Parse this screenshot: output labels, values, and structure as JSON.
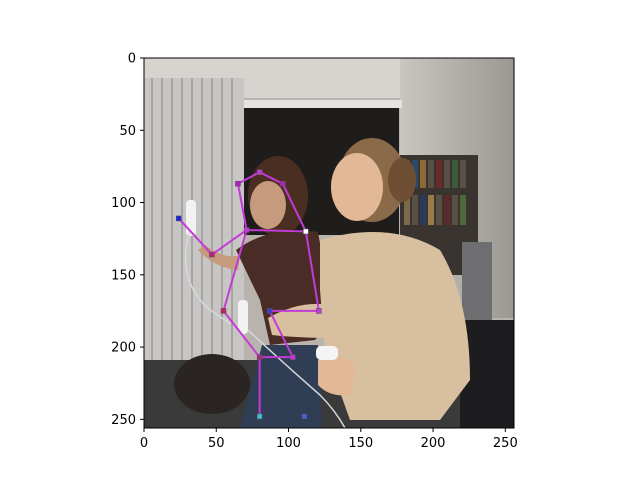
{
  "figure": {
    "image_description_icon": "photo-two-women-playing-wii",
    "axes": {
      "x_ticks": [
        {
          "value": 0,
          "label": "0"
        },
        {
          "value": 50,
          "label": "50"
        },
        {
          "value": 100,
          "label": "100"
        },
        {
          "value": 150,
          "label": "150"
        },
        {
          "value": 200,
          "label": "200"
        },
        {
          "value": 250,
          "label": "250"
        }
      ],
      "y_ticks": [
        {
          "value": 0,
          "label": "0"
        },
        {
          "value": 50,
          "label": "50"
        },
        {
          "value": 100,
          "label": "100"
        },
        {
          "value": 150,
          "label": "150"
        },
        {
          "value": 200,
          "label": "200"
        },
        {
          "value": 250,
          "label": "250"
        }
      ],
      "xlim": [
        0,
        256
      ],
      "ylim": [
        256,
        0
      ]
    },
    "skeleton": {
      "line_color": "#c43ad6",
      "joints": [
        {
          "name": "head-top",
          "x": 80,
          "y": 79,
          "color": "#c43ad6"
        },
        {
          "name": "neck-left",
          "x": 65,
          "y": 87,
          "color": "#b020c0"
        },
        {
          "name": "neck-right",
          "x": 96,
          "y": 87,
          "color": "#b020c0"
        },
        {
          "name": "left-shoulder",
          "x": 71,
          "y": 119,
          "color": "#c43ad6"
        },
        {
          "name": "right-shoulder",
          "x": 112,
          "y": 120,
          "color": "#ffffff"
        },
        {
          "name": "left-elbow",
          "x": 47,
          "y": 136,
          "color": "#c02080"
        },
        {
          "name": "left-wrist",
          "x": 24,
          "y": 111,
          "color": "#2020e0"
        },
        {
          "name": "right-hip-outer",
          "x": 121,
          "y": 175,
          "color": "#c43ad6"
        },
        {
          "name": "center-hip",
          "x": 87,
          "y": 175,
          "color": "#4040c0"
        },
        {
          "name": "left-hip",
          "x": 55,
          "y": 175,
          "color": "#c02060"
        },
        {
          "name": "left-knee",
          "x": 80,
          "y": 207,
          "color": "#a03080"
        },
        {
          "name": "right-knee",
          "x": 103,
          "y": 207,
          "color": "#c43ad6"
        },
        {
          "name": "left-ankle",
          "x": 80,
          "y": 248,
          "color": "#40c0d0"
        },
        {
          "name": "right-ankle",
          "x": 111,
          "y": 248,
          "color": "#4060e0"
        }
      ],
      "bones": [
        [
          "neck-left",
          "head-top"
        ],
        [
          "head-top",
          "neck-right"
        ],
        [
          "neck-left",
          "left-shoulder"
        ],
        [
          "neck-right",
          "right-shoulder"
        ],
        [
          "left-shoulder",
          "right-shoulder"
        ],
        [
          "left-shoulder",
          "left-elbow"
        ],
        [
          "left-elbow",
          "left-wrist"
        ],
        [
          "right-shoulder",
          "right-hip-outer"
        ],
        [
          "right-hip-outer",
          "center-hip"
        ],
        [
          "left-shoulder",
          "left-hip"
        ],
        [
          "left-hip",
          "left-knee"
        ],
        [
          "left-knee",
          "left-ankle"
        ],
        [
          "left-knee",
          "right-knee"
        ],
        [
          "right-knee",
          "center-hip"
        ]
      ]
    }
  }
}
